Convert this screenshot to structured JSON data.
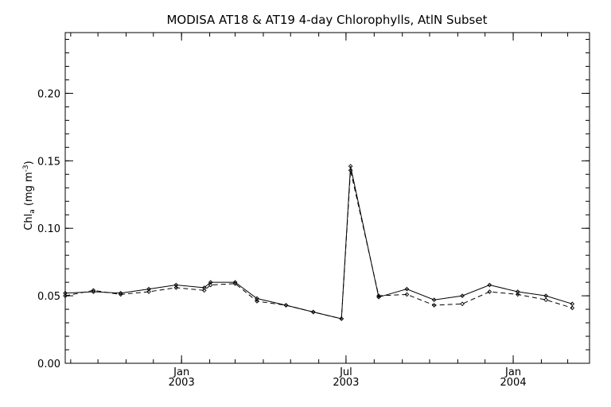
{
  "chart_data": {
    "type": "line",
    "title": "MODISA AT18 & AT19 4-day Chlorophylls, AtlN Subset",
    "ylabel": {
      "base": "Chl",
      "sub": "a",
      "units_open": " (mg m",
      "units_sup": "-3",
      "units_close": ")"
    },
    "ylim": [
      0.0,
      0.245
    ],
    "xlim": [
      "2002-08-26",
      "2004-03-25"
    ],
    "yticks": [
      {
        "value": 0.0,
        "label": "0.00"
      },
      {
        "value": 0.05,
        "label": "0.05"
      },
      {
        "value": 0.1,
        "label": "0.10"
      },
      {
        "value": 0.15,
        "label": "0.15"
      },
      {
        "value": 0.2,
        "label": "0.20"
      }
    ],
    "xticks": [
      {
        "value": "2003-01-01",
        "month": "Jan",
        "year": "2003"
      },
      {
        "value": "2003-07-01",
        "month": "Jul",
        "year": "2003"
      },
      {
        "value": "2004-01-01",
        "month": "Jan",
        "year": "2004"
      }
    ],
    "grid": false,
    "series": [
      {
        "style": "solid",
        "points": [
          [
            "2002-08-26",
            0.052
          ],
          [
            "2002-09-26",
            0.053
          ],
          [
            "2002-10-26",
            0.052
          ],
          [
            "2002-11-26",
            0.055
          ],
          [
            "2002-12-26",
            0.058
          ],
          [
            "2003-01-26",
            0.056
          ],
          [
            "2003-02-02",
            0.06
          ],
          [
            "2003-02-29",
            0.06
          ],
          [
            "2003-03-25",
            0.048
          ],
          [
            "2003-04-26",
            0.043
          ],
          [
            "2003-05-26",
            0.038
          ],
          [
            "2003-06-26",
            0.033
          ],
          [
            "2003-07-06",
            0.146
          ],
          [
            "2003-08-06",
            0.049
          ],
          [
            "2003-09-06",
            0.055
          ],
          [
            "2003-10-06",
            0.047
          ],
          [
            "2003-11-06",
            0.05
          ],
          [
            "2003-12-06",
            0.058
          ],
          [
            "2004-01-06",
            0.053
          ],
          [
            "2004-02-06",
            0.05
          ],
          [
            "2004-03-06",
            0.044
          ]
        ]
      },
      {
        "style": "dashed",
        "points": [
          [
            "2002-08-26",
            0.05
          ],
          [
            "2002-09-26",
            0.054
          ],
          [
            "2002-10-26",
            0.051
          ],
          [
            "2002-11-26",
            0.053
          ],
          [
            "2002-12-26",
            0.056
          ],
          [
            "2003-01-26",
            0.054
          ],
          [
            "2003-02-02",
            0.058
          ],
          [
            "2003-02-29",
            0.059
          ],
          [
            "2003-03-25",
            0.046
          ],
          [
            "2003-04-26",
            0.043
          ],
          [
            "2003-05-26",
            0.038
          ],
          [
            "2003-06-26",
            0.033
          ],
          [
            "2003-07-06",
            0.143
          ],
          [
            "2003-08-06",
            0.05
          ],
          [
            "2003-09-06",
            0.051
          ],
          [
            "2003-10-06",
            0.043
          ],
          [
            "2003-11-06",
            0.044
          ],
          [
            "2003-12-06",
            0.053
          ],
          [
            "2004-01-06",
            0.051
          ],
          [
            "2004-02-06",
            0.047
          ],
          [
            "2004-03-06",
            0.041
          ]
        ]
      }
    ]
  }
}
